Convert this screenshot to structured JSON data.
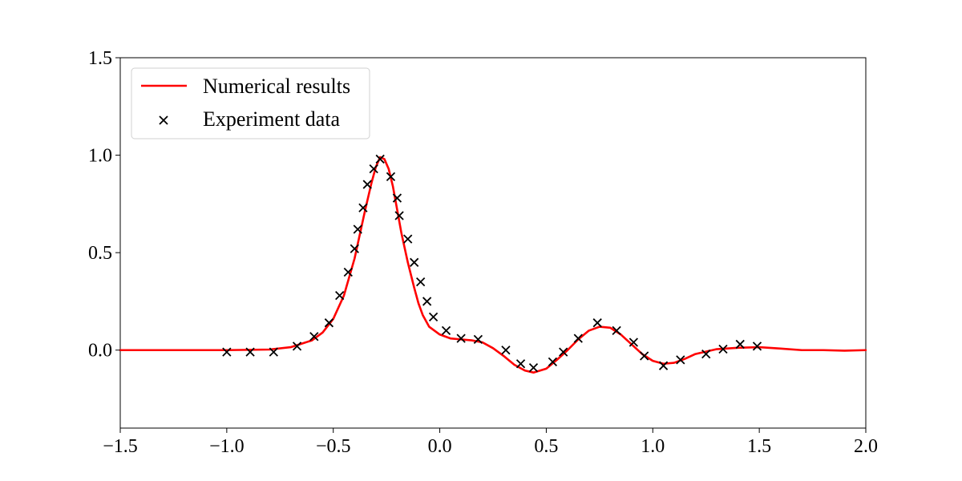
{
  "chart_data": {
    "type": "line",
    "title": "",
    "xlabel": "",
    "ylabel": "",
    "xlim": [
      -1.5,
      2.0
    ],
    "ylim": [
      -0.4,
      1.5
    ],
    "xticks": [
      -1.5,
      -1.0,
      -0.5,
      0.0,
      0.5,
      1.0,
      1.5,
      2.0
    ],
    "xtick_labels": [
      "−1.5",
      "−1.0",
      "−0.5",
      "0.0",
      "0.5",
      "1.0",
      "1.5",
      "2.0"
    ],
    "yticks": [
      0.0,
      0.5,
      1.0,
      1.5
    ],
    "ytick_labels": [
      "0.0",
      "0.5",
      "1.0",
      "1.5"
    ],
    "grid": false,
    "legend": {
      "placement": "top-left",
      "entries": [
        "Numerical results",
        "Experiment data"
      ]
    },
    "series": [
      {
        "name": "Numerical results",
        "kind": "line",
        "color": "#ff0000",
        "x": [
          -1.5,
          -1.0,
          -0.8,
          -0.7,
          -0.6,
          -0.55,
          -0.5,
          -0.45,
          -0.4,
          -0.35,
          -0.32,
          -0.3,
          -0.28,
          -0.26,
          -0.24,
          -0.22,
          -0.2,
          -0.18,
          -0.15,
          -0.12,
          -0.1,
          -0.08,
          -0.05,
          0.0,
          0.05,
          0.1,
          0.15,
          0.2,
          0.25,
          0.3,
          0.35,
          0.4,
          0.44,
          0.5,
          0.55,
          0.6,
          0.65,
          0.7,
          0.75,
          0.8,
          0.85,
          0.9,
          0.95,
          1.0,
          1.05,
          1.1,
          1.15,
          1.2,
          1.3,
          1.4,
          1.5,
          1.6,
          1.7,
          1.8,
          1.9,
          2.0
        ],
        "y": [
          0.0,
          0.0,
          0.003,
          0.015,
          0.05,
          0.09,
          0.16,
          0.28,
          0.47,
          0.72,
          0.86,
          0.94,
          0.99,
          0.98,
          0.93,
          0.84,
          0.72,
          0.6,
          0.45,
          0.32,
          0.24,
          0.18,
          0.12,
          0.08,
          0.06,
          0.055,
          0.05,
          0.04,
          0.01,
          -0.03,
          -0.075,
          -0.105,
          -0.115,
          -0.095,
          -0.05,
          0.0,
          0.055,
          0.1,
          0.12,
          0.115,
          0.08,
          0.03,
          -0.02,
          -0.055,
          -0.07,
          -0.065,
          -0.045,
          -0.02,
          0.005,
          0.012,
          0.015,
          0.008,
          0.0,
          0.0,
          -0.003,
          0.0
        ]
      },
      {
        "name": "Experiment data",
        "kind": "scatter",
        "marker": "x",
        "color": "#000000",
        "x": [
          -1.0,
          -0.89,
          -0.78,
          -0.67,
          -0.59,
          -0.52,
          -0.47,
          -0.43,
          -0.4,
          -0.385,
          -0.36,
          -0.34,
          -0.31,
          -0.28,
          -0.23,
          -0.2,
          -0.19,
          -0.15,
          -0.12,
          -0.09,
          -0.06,
          -0.03,
          0.03,
          0.1,
          0.18,
          0.31,
          0.38,
          0.44,
          0.53,
          0.58,
          0.65,
          0.74,
          0.83,
          0.91,
          0.96,
          1.05,
          1.13,
          1.25,
          1.33,
          1.41,
          1.49
        ],
        "y": [
          -0.01,
          -0.01,
          -0.01,
          0.02,
          0.07,
          0.14,
          0.28,
          0.4,
          0.52,
          0.62,
          0.73,
          0.85,
          0.93,
          0.98,
          0.89,
          0.78,
          0.69,
          0.57,
          0.45,
          0.35,
          0.25,
          0.17,
          0.1,
          0.06,
          0.055,
          0.0,
          -0.07,
          -0.09,
          -0.06,
          -0.01,
          0.06,
          0.14,
          0.1,
          0.04,
          -0.03,
          -0.08,
          -0.05,
          -0.02,
          0.005,
          0.03,
          0.02
        ]
      }
    ]
  }
}
